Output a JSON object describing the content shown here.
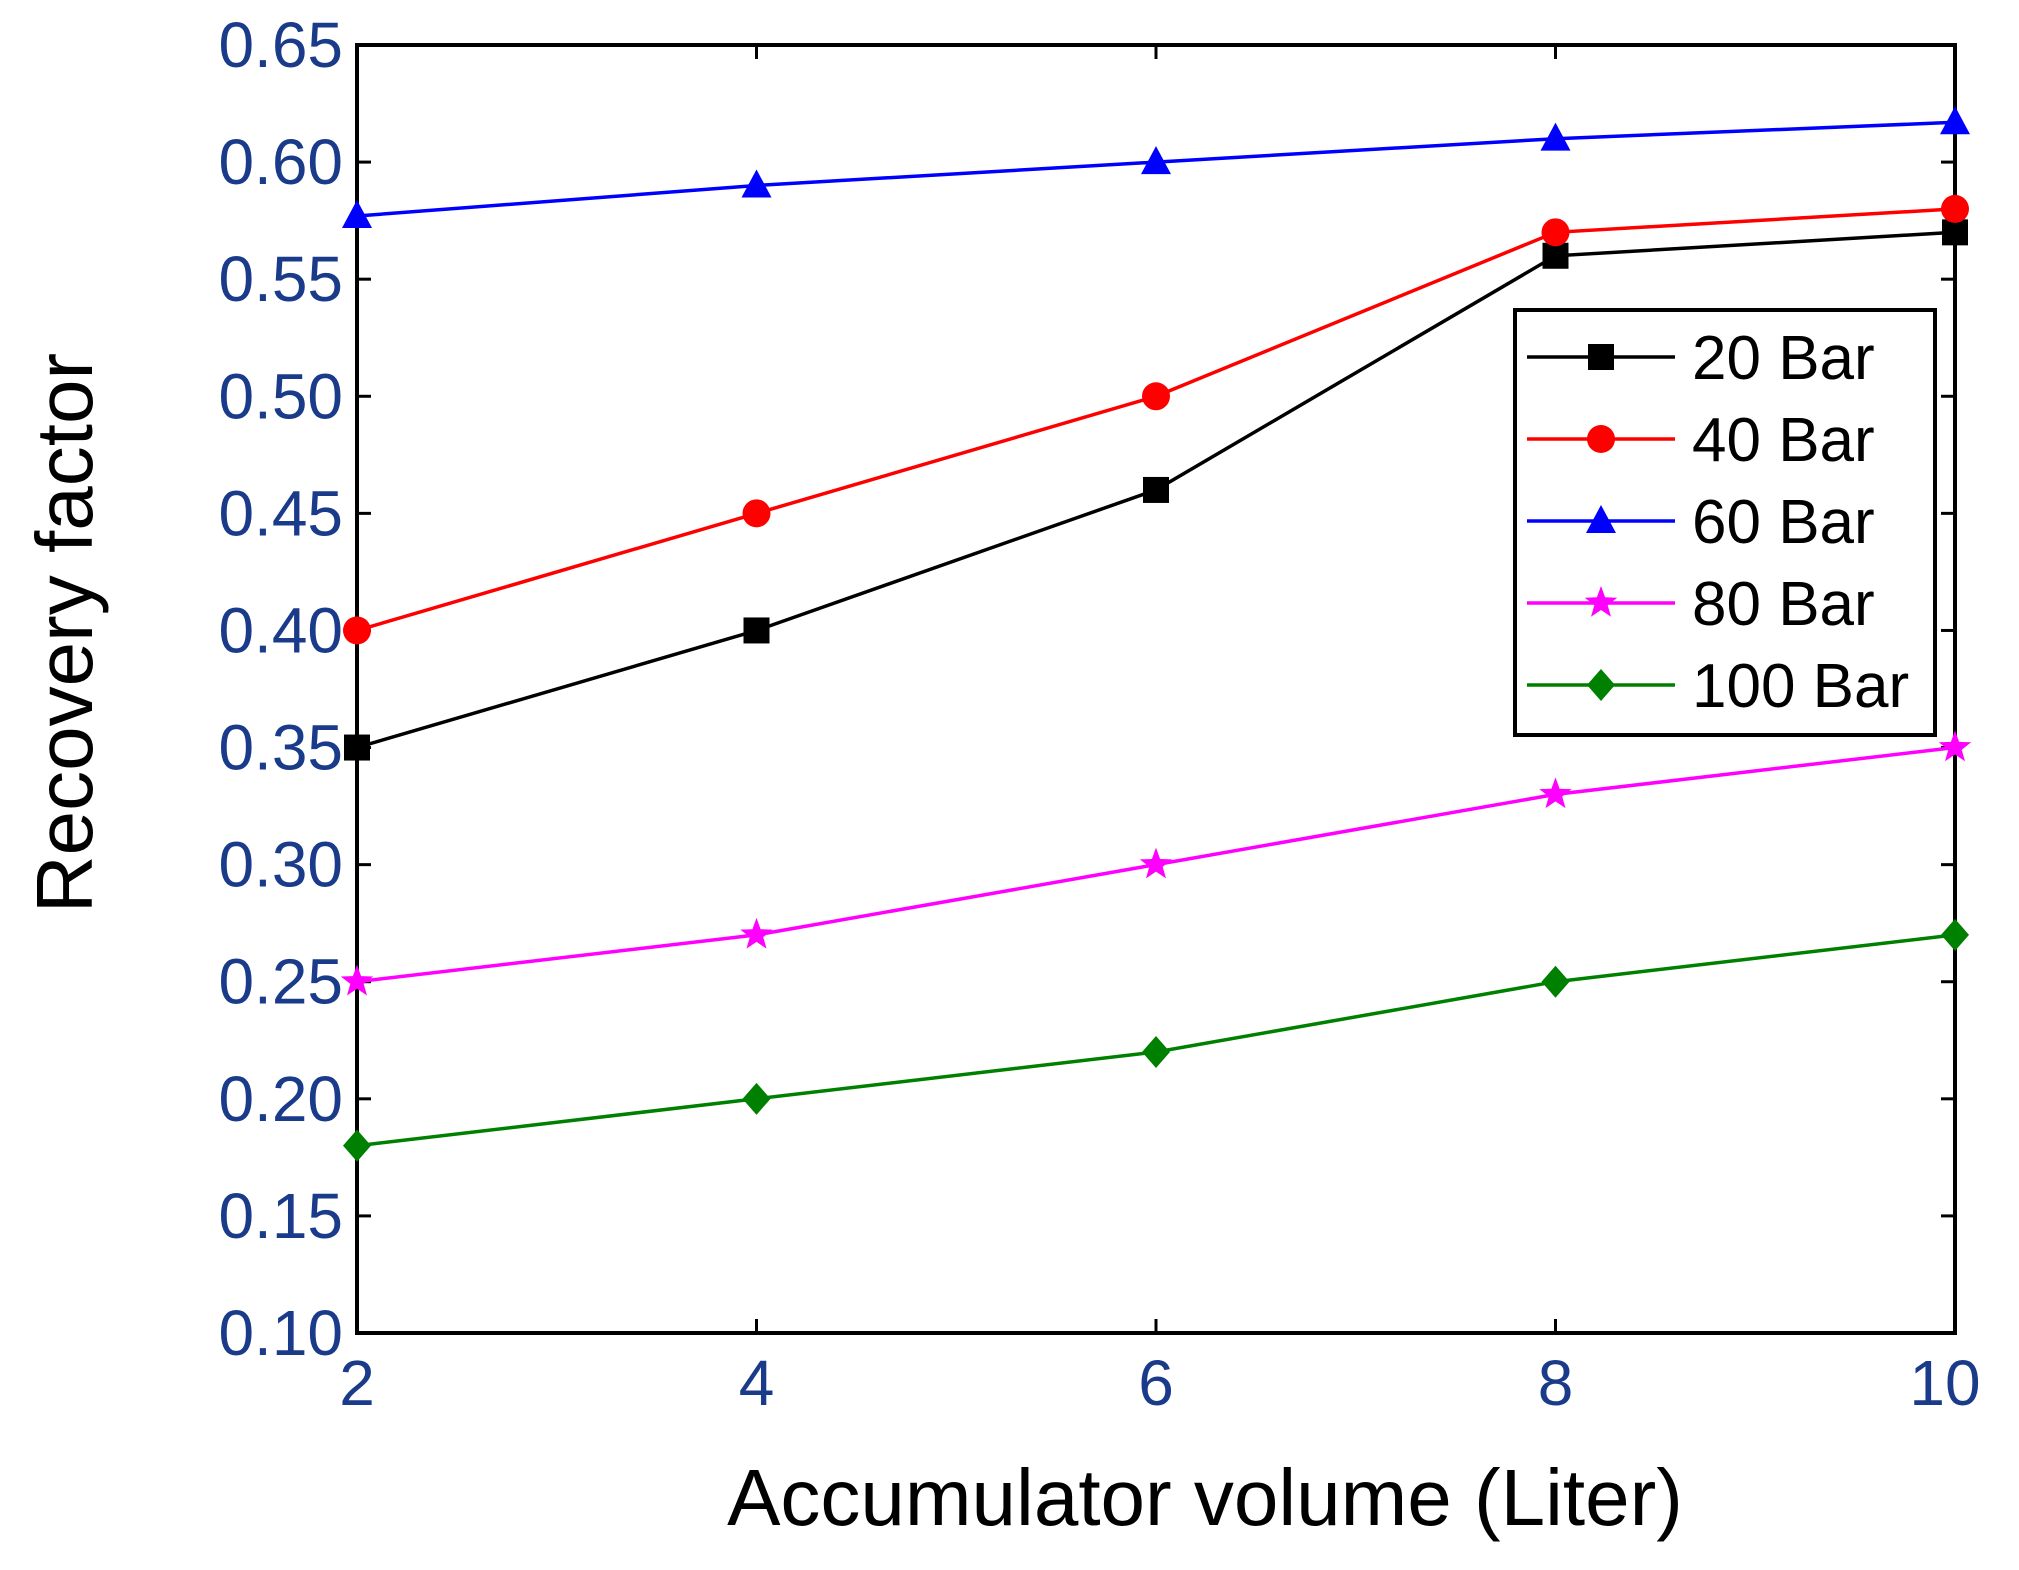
{
  "chart_data": {
    "type": "line",
    "title": "",
    "xlabel": "Accumulator volume (Liter)",
    "ylabel": "Recovery factor",
    "x": [
      2,
      4,
      6,
      8,
      10
    ],
    "xlim": [
      2,
      10
    ],
    "ylim": [
      0.1,
      0.65
    ],
    "xticks": [
      "2",
      "4",
      "6",
      "8",
      "10"
    ],
    "yticks": [
      "0.10",
      "0.15",
      "0.20",
      "0.25",
      "0.30",
      "0.35",
      "0.40",
      "0.45",
      "0.50",
      "0.55",
      "0.60",
      "0.65"
    ],
    "grid": false,
    "legend_position": "right",
    "series": [
      {
        "name": "20 Bar",
        "values": [
          0.35,
          0.4,
          0.46,
          0.56,
          0.57
        ],
        "color": "#000000",
        "marker": "square"
      },
      {
        "name": "40 Bar",
        "values": [
          0.4,
          0.45,
          0.5,
          0.57,
          0.58
        ],
        "color": "#ff0000",
        "marker": "circle"
      },
      {
        "name": "60 Bar",
        "values": [
          0.577,
          0.59,
          0.6,
          0.61,
          0.617
        ],
        "color": "#0000ff",
        "marker": "triangle"
      },
      {
        "name": "80 Bar",
        "values": [
          0.25,
          0.27,
          0.3,
          0.33,
          0.35
        ],
        "color": "#ff00ff",
        "marker": "star"
      },
      {
        "name": "100 Bar",
        "values": [
          0.18,
          0.2,
          0.22,
          0.25,
          0.27
        ],
        "color": "#008000",
        "marker": "diamond"
      }
    ]
  }
}
